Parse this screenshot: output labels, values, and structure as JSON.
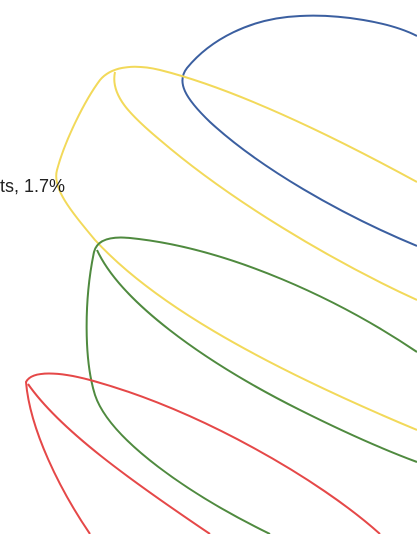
{
  "caption": "ts, 1.7%",
  "shapes": [
    {
      "name": "blue-loop",
      "color": "#3b5fa0"
    },
    {
      "name": "yellow-loop",
      "color": "#f2d95a"
    },
    {
      "name": "green-loop",
      "color": "#4f8a3f"
    },
    {
      "name": "red-loop",
      "color": "#e54848"
    }
  ]
}
